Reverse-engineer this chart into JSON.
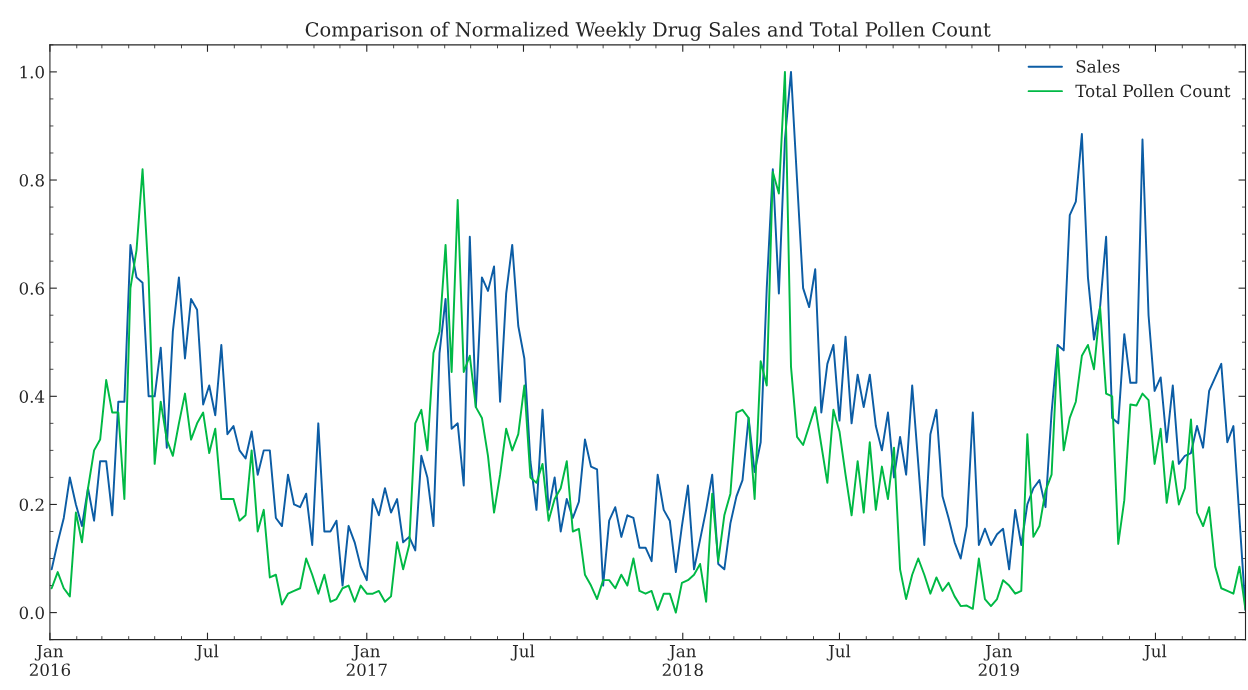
{
  "chart_data": {
    "type": "line",
    "title": "Comparison of Normalized Weekly Drug Sales and Total Pollen Count",
    "x": [
      "2016-01-03",
      "2016-01-10",
      "2016-01-17",
      "2016-01-24",
      "2016-01-31",
      "2016-02-07",
      "2016-02-14",
      "2016-02-21",
      "2016-02-28",
      "2016-03-06",
      "2016-03-13",
      "2016-03-20",
      "2016-03-27",
      "2016-04-03",
      "2016-04-10",
      "2016-04-17",
      "2016-04-24",
      "2016-05-01",
      "2016-05-08",
      "2016-05-15",
      "2016-05-22",
      "2016-05-29",
      "2016-06-05",
      "2016-06-12",
      "2016-06-19",
      "2016-06-26",
      "2016-07-03",
      "2016-07-10",
      "2016-07-17",
      "2016-07-24",
      "2016-07-31",
      "2016-08-07",
      "2016-08-14",
      "2016-08-21",
      "2016-08-28",
      "2016-09-04",
      "2016-09-11",
      "2016-09-18",
      "2016-09-25",
      "2016-10-02",
      "2016-10-09",
      "2016-10-16",
      "2016-10-23",
      "2016-10-30",
      "2016-11-06",
      "2016-11-13",
      "2016-11-20",
      "2016-11-27",
      "2016-12-04",
      "2016-12-11",
      "2016-12-18",
      "2016-12-25",
      "2017-01-01",
      "2017-01-08",
      "2017-01-15",
      "2017-01-22",
      "2017-01-29",
      "2017-02-05",
      "2017-02-12",
      "2017-02-19",
      "2017-02-26",
      "2017-03-05",
      "2017-03-12",
      "2017-03-19",
      "2017-03-26",
      "2017-04-02",
      "2017-04-09",
      "2017-04-16",
      "2017-04-23",
      "2017-04-30",
      "2017-05-07",
      "2017-05-14",
      "2017-05-21",
      "2017-05-28",
      "2017-06-04",
      "2017-06-11",
      "2017-06-18",
      "2017-06-25",
      "2017-07-02",
      "2017-07-09",
      "2017-07-16",
      "2017-07-23",
      "2017-07-30",
      "2017-08-06",
      "2017-08-13",
      "2017-08-20",
      "2017-08-27",
      "2017-09-03",
      "2017-09-10",
      "2017-09-17",
      "2017-09-24",
      "2017-10-01",
      "2017-10-08",
      "2017-10-15",
      "2017-10-22",
      "2017-10-29",
      "2017-11-05",
      "2017-11-12",
      "2017-11-19",
      "2017-11-26",
      "2017-12-03",
      "2017-12-10",
      "2017-12-17",
      "2017-12-24",
      "2017-12-31",
      "2018-01-07",
      "2018-01-14",
      "2018-01-21",
      "2018-01-28",
      "2018-02-04",
      "2018-02-11",
      "2018-02-18",
      "2018-02-25",
      "2018-03-04",
      "2018-03-11",
      "2018-03-18",
      "2018-03-25",
      "2018-04-01",
      "2018-04-08",
      "2018-04-15",
      "2018-04-22",
      "2018-04-29",
      "2018-05-06",
      "2018-05-13",
      "2018-05-20",
      "2018-05-27",
      "2018-06-03",
      "2018-06-10",
      "2018-06-17",
      "2018-06-24",
      "2018-07-01",
      "2018-07-08",
      "2018-07-15",
      "2018-07-22",
      "2018-07-29",
      "2018-08-05",
      "2018-08-12",
      "2018-08-19",
      "2018-08-26",
      "2018-09-02",
      "2018-09-09",
      "2018-09-16",
      "2018-09-23",
      "2018-09-30",
      "2018-10-07",
      "2018-10-14",
      "2018-10-21",
      "2018-10-28",
      "2018-11-04",
      "2018-11-11",
      "2018-11-18",
      "2018-11-25",
      "2018-12-02",
      "2018-12-09",
      "2018-12-16",
      "2018-12-23",
      "2018-12-30",
      "2019-01-06",
      "2019-01-13",
      "2019-01-20",
      "2019-01-27",
      "2019-02-03",
      "2019-02-10",
      "2019-02-17",
      "2019-02-24",
      "2019-03-03",
      "2019-03-10",
      "2019-03-17",
      "2019-03-24",
      "2019-03-31",
      "2019-04-07",
      "2019-04-14",
      "2019-04-21",
      "2019-04-28",
      "2019-05-05",
      "2019-05-12",
      "2019-05-19",
      "2019-05-26",
      "2019-06-02",
      "2019-06-09",
      "2019-06-16",
      "2019-06-23",
      "2019-06-30",
      "2019-07-07",
      "2019-07-14",
      "2019-07-21",
      "2019-07-28",
      "2019-08-04",
      "2019-08-11",
      "2019-08-18",
      "2019-08-25",
      "2019-09-01",
      "2019-09-08",
      "2019-09-15",
      "2019-09-22",
      "2019-09-29",
      "2019-10-06",
      "2019-10-13"
    ],
    "series": [
      {
        "name": "Sales",
        "color": "#0c5da5",
        "values": [
          0.08,
          0.13,
          0.175,
          0.25,
          0.2,
          0.16,
          0.23,
          0.17,
          0.28,
          0.28,
          0.18,
          0.39,
          0.39,
          0.68,
          0.62,
          0.61,
          0.4,
          0.4,
          0.49,
          0.305,
          0.52,
          0.62,
          0.47,
          0.58,
          0.56,
          0.385,
          0.42,
          0.365,
          0.495,
          0.33,
          0.345,
          0.3,
          0.285,
          0.335,
          0.255,
          0.3,
          0.3,
          0.175,
          0.16,
          0.255,
          0.2,
          0.195,
          0.22,
          0.125,
          0.35,
          0.15,
          0.15,
          0.17,
          0.05,
          0.16,
          0.13,
          0.085,
          0.06,
          0.21,
          0.18,
          0.23,
          0.185,
          0.21,
          0.13,
          0.14,
          0.115,
          0.29,
          0.25,
          0.16,
          0.48,
          0.58,
          0.34,
          0.35,
          0.235,
          0.695,
          0.38,
          0.62,
          0.595,
          0.64,
          0.39,
          0.59,
          0.68,
          0.53,
          0.47,
          0.28,
          0.19,
          0.375,
          0.19,
          0.25,
          0.15,
          0.21,
          0.175,
          0.205,
          0.32,
          0.27,
          0.265,
          0.05,
          0.17,
          0.195,
          0.14,
          0.18,
          0.175,
          0.12,
          0.12,
          0.095,
          0.255,
          0.19,
          0.17,
          0.075,
          0.16,
          0.235,
          0.08,
          0.135,
          0.19,
          0.255,
          0.09,
          0.08,
          0.165,
          0.215,
          0.245,
          0.36,
          0.26,
          0.315,
          0.6,
          0.82,
          0.59,
          0.875,
          1.0,
          0.8,
          0.6,
          0.565,
          0.635,
          0.37,
          0.46,
          0.495,
          0.355,
          0.51,
          0.35,
          0.44,
          0.38,
          0.44,
          0.345,
          0.3,
          0.37,
          0.25,
          0.325,
          0.255,
          0.42,
          0.275,
          0.125,
          0.33,
          0.375,
          0.215,
          0.175,
          0.13,
          0.1,
          0.16,
          0.37,
          0.125,
          0.155,
          0.125,
          0.145,
          0.155,
          0.08,
          0.19,
          0.125,
          0.2,
          0.23,
          0.245,
          0.195,
          0.37,
          0.495,
          0.485,
          0.735,
          0.76,
          0.885,
          0.62,
          0.505,
          0.565,
          0.695,
          0.36,
          0.35,
          0.515,
          0.425,
          0.425,
          0.875,
          0.55,
          0.41,
          0.435,
          0.315,
          0.42,
          0.275,
          0.29,
          0.295,
          0.345,
          0.305,
          0.41,
          0.435,
          0.46,
          0.315,
          0.345,
          0.175,
          0.005
        ]
      },
      {
        "name": "Total Pollen Count",
        "color": "#00b945",
        "values": [
          0.045,
          0.075,
          0.045,
          0.03,
          0.185,
          0.13,
          0.23,
          0.3,
          0.32,
          0.43,
          0.37,
          0.37,
          0.21,
          0.6,
          0.67,
          0.82,
          0.62,
          0.275,
          0.39,
          0.32,
          0.29,
          0.35,
          0.405,
          0.32,
          0.35,
          0.37,
          0.295,
          0.34,
          0.21,
          0.21,
          0.21,
          0.17,
          0.18,
          0.3,
          0.15,
          0.19,
          0.065,
          0.07,
          0.015,
          0.035,
          0.04,
          0.045,
          0.1,
          0.07,
          0.035,
          0.07,
          0.02,
          0.025,
          0.045,
          0.05,
          0.02,
          0.05,
          0.035,
          0.035,
          0.04,
          0.02,
          0.03,
          0.13,
          0.08,
          0.125,
          0.35,
          0.375,
          0.3,
          0.48,
          0.52,
          0.68,
          0.445,
          0.763,
          0.445,
          0.475,
          0.38,
          0.36,
          0.29,
          0.185,
          0.255,
          0.34,
          0.3,
          0.33,
          0.42,
          0.25,
          0.24,
          0.275,
          0.17,
          0.21,
          0.23,
          0.28,
          0.15,
          0.155,
          0.07,
          0.05,
          0.025,
          0.06,
          0.06,
          0.045,
          0.07,
          0.05,
          0.1,
          0.04,
          0.035,
          0.04,
          0.005,
          0.035,
          0.035,
          0.0,
          0.055,
          0.06,
          0.07,
          0.09,
          0.02,
          0.22,
          0.095,
          0.18,
          0.22,
          0.37,
          0.375,
          0.36,
          0.21,
          0.465,
          0.42,
          0.815,
          0.775,
          1.0,
          0.455,
          0.325,
          0.31,
          0.345,
          0.38,
          0.31,
          0.24,
          0.375,
          0.335,
          0.255,
          0.18,
          0.28,
          0.185,
          0.315,
          0.19,
          0.27,
          0.21,
          0.305,
          0.08,
          0.025,
          0.07,
          0.1,
          0.07,
          0.035,
          0.065,
          0.04,
          0.055,
          0.03,
          0.012,
          0.013,
          0.007,
          0.1,
          0.025,
          0.012,
          0.025,
          0.06,
          0.05,
          0.035,
          0.04,
          0.33,
          0.14,
          0.16,
          0.225,
          0.255,
          0.49,
          0.3,
          0.36,
          0.39,
          0.475,
          0.495,
          0.45,
          0.565,
          0.405,
          0.4,
          0.127,
          0.208,
          0.385,
          0.383,
          0.405,
          0.393,
          0.275,
          0.34,
          0.203,
          0.28,
          0.2,
          0.23,
          0.357,
          0.185,
          0.16,
          0.195,
          0.085,
          0.045,
          0.04,
          0.035,
          0.085,
          0.005
        ]
      }
    ],
    "xlim": [
      "2016-01-01",
      "2019-10-13"
    ],
    "xticks": [
      {
        "value": "2016-01-01",
        "label": "Jan\n2016"
      },
      {
        "value": "2016-07-01",
        "label": "Jul"
      },
      {
        "value": "2017-01-01",
        "label": "Jan\n2017"
      },
      {
        "value": "2017-07-01",
        "label": "Jul"
      },
      {
        "value": "2018-01-01",
        "label": "Jan\n2018"
      },
      {
        "value": "2018-07-01",
        "label": "Jul"
      },
      {
        "value": "2019-01-01",
        "label": "Jan\n2019"
      },
      {
        "value": "2019-07-01",
        "label": "Jul"
      }
    ],
    "ylim": [
      -0.05,
      1.05
    ],
    "yticks": [
      {
        "value": 0.0,
        "label": "0.0"
      },
      {
        "value": 0.2,
        "label": "0.2"
      },
      {
        "value": 0.4,
        "label": "0.4"
      },
      {
        "value": 0.6,
        "label": "0.6"
      },
      {
        "value": 0.8,
        "label": "0.8"
      },
      {
        "value": 1.0,
        "label": "1.0"
      }
    ],
    "legend": "top right",
    "grid": false,
    "line_style": "solid",
    "marker": "none"
  }
}
